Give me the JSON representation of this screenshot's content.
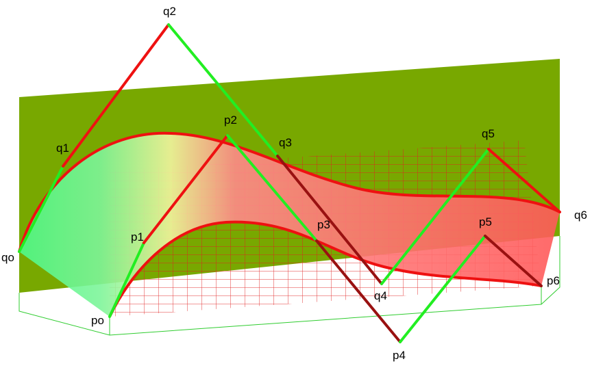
{
  "points": [
    {
      "label": "q2"
    },
    {
      "label": "q1"
    },
    {
      "label": "p2"
    },
    {
      "label": "q3"
    },
    {
      "label": "q5"
    },
    {
      "label": "p1"
    },
    {
      "label": "p3"
    },
    {
      "label": "q6"
    },
    {
      "label": "qo"
    },
    {
      "label": "p5"
    },
    {
      "label": "p6"
    },
    {
      "label": "q4"
    },
    {
      "label": "po"
    },
    {
      "label": "p4"
    }
  ]
}
